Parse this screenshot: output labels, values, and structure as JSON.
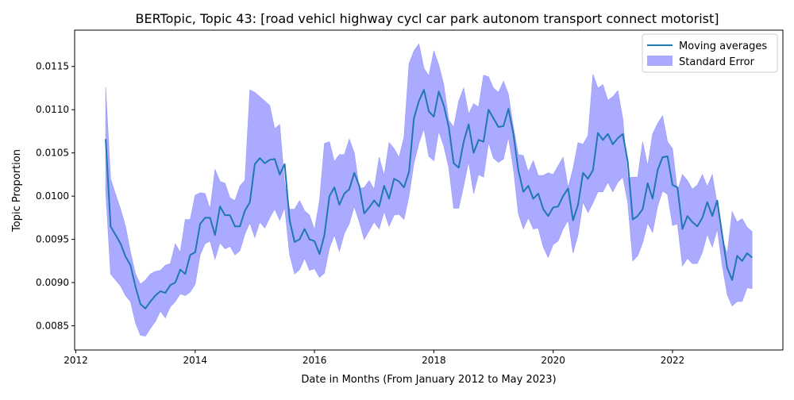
{
  "chart_data": {
    "type": "line",
    "title": "BERTopic, Topic 43: [road vehicl highway cycl car park autonom transport connect motorist]",
    "xlabel": "Date in Months (From January 2012 to May 2023)",
    "ylabel": "Topic Proportion",
    "xlim": [
      2011.98,
      2023.85
    ],
    "ylim": [
      0.00822,
      0.01192
    ],
    "xticks": [
      2012,
      2014,
      2016,
      2018,
      2020,
      2022
    ],
    "yticks": [
      0.0085,
      0.009,
      0.0095,
      0.01,
      0.0105,
      0.011,
      0.0115
    ],
    "ytick_labels": [
      "0.0085",
      "0.0090",
      "0.0095",
      "0.0100",
      "0.0105",
      "0.0110",
      "0.0115"
    ],
    "legend": {
      "position": "top-right"
    },
    "series": [
      {
        "name": "Moving averages",
        "color": "#1f77b4"
      },
      {
        "name": "Standard Error",
        "color": "#aaaaff"
      }
    ],
    "x": [
      2012.5,
      2012.5833,
      2012.6667,
      2012.75,
      2012.8333,
      2012.9167,
      2013.0,
      2013.0833,
      2013.1667,
      2013.25,
      2013.3333,
      2013.4167,
      2013.5,
      2013.5833,
      2013.6667,
      2013.75,
      2013.8333,
      2013.9167,
      2014.0,
      2014.0833,
      2014.1667,
      2014.25,
      2014.3333,
      2014.4167,
      2014.5,
      2014.5833,
      2014.6667,
      2014.75,
      2014.8333,
      2014.9167,
      2015.0,
      2015.0833,
      2015.1667,
      2015.25,
      2015.3333,
      2015.4167,
      2015.5,
      2015.5833,
      2015.6667,
      2015.75,
      2015.8333,
      2015.9167,
      2016.0,
      2016.0833,
      2016.1667,
      2016.25,
      2016.3333,
      2016.4167,
      2016.5,
      2016.5833,
      2016.6667,
      2016.75,
      2016.8333,
      2016.9167,
      2017.0,
      2017.0833,
      2017.1667,
      2017.25,
      2017.3333,
      2017.4167,
      2017.5,
      2017.5833,
      2017.6667,
      2017.75,
      2017.8333,
      2017.9167,
      2018.0,
      2018.0833,
      2018.1667,
      2018.25,
      2018.3333,
      2018.4167,
      2018.5,
      2018.5833,
      2018.6667,
      2018.75,
      2018.8333,
      2018.9167,
      2019.0,
      2019.0833,
      2019.1667,
      2019.25,
      2019.3333,
      2019.4167,
      2019.5,
      2019.5833,
      2019.6667,
      2019.75,
      2019.8333,
      2019.9167,
      2020.0,
      2020.0833,
      2020.1667,
      2020.25,
      2020.3333,
      2020.4167,
      2020.5,
      2020.5833,
      2020.6667,
      2020.75,
      2020.8333,
      2020.9167,
      2021.0,
      2021.0833,
      2021.1667,
      2021.25,
      2021.3333,
      2021.4167,
      2021.5,
      2021.5833,
      2021.6667,
      2021.75,
      2021.8333,
      2021.9167,
      2022.0,
      2022.0833,
      2022.1667,
      2022.25,
      2022.3333,
      2022.4167,
      2022.5,
      2022.5833,
      2022.6667,
      2022.75,
      2022.8333,
      2022.9167,
      2023.0,
      2023.0833,
      2023.1667,
      2023.25,
      2023.3333
    ],
    "moving_average": [
      0.01066,
      0.00965,
      0.00955,
      0.00945,
      0.0093,
      0.0092,
      0.00895,
      0.00875,
      0.0087,
      0.00878,
      0.00885,
      0.0089,
      0.00888,
      0.00897,
      0.009,
      0.00915,
      0.0091,
      0.00932,
      0.00935,
      0.00968,
      0.00975,
      0.00975,
      0.00955,
      0.00988,
      0.00978,
      0.00978,
      0.00965,
      0.00965,
      0.00983,
      0.00993,
      0.01037,
      0.01044,
      0.01038,
      0.01042,
      0.01043,
      0.01025,
      0.01037,
      0.00972,
      0.00947,
      0.0095,
      0.00962,
      0.0095,
      0.00948,
      0.00933,
      0.00955,
      0.01,
      0.0101,
      0.0099,
      0.01003,
      0.01008,
      0.01027,
      0.01012,
      0.0098,
      0.00987,
      0.00995,
      0.00988,
      0.01012,
      0.00997,
      0.0102,
      0.01017,
      0.0101,
      0.01028,
      0.0109,
      0.0111,
      0.01123,
      0.01098,
      0.01092,
      0.01121,
      0.01105,
      0.0108,
      0.01038,
      0.01033,
      0.01063,
      0.01083,
      0.0105,
      0.01065,
      0.01063,
      0.011,
      0.0109,
      0.0108,
      0.01081,
      0.01101,
      0.01072,
      0.0103,
      0.01005,
      0.01012,
      0.00997,
      0.01003,
      0.00985,
      0.00977,
      0.00987,
      0.00988,
      0.01,
      0.01009,
      0.00972,
      0.0099,
      0.01027,
      0.0102,
      0.0103,
      0.01073,
      0.01065,
      0.01072,
      0.0106,
      0.01067,
      0.01072,
      0.0104,
      0.00973,
      0.00977,
      0.00985,
      0.01015,
      0.00997,
      0.0103,
      0.01045,
      0.01046,
      0.01013,
      0.0101,
      0.00962,
      0.00977,
      0.0097,
      0.00965,
      0.00975,
      0.00993,
      0.00977,
      0.00995,
      0.00955,
      0.00917,
      0.00903,
      0.00931,
      0.00925,
      0.00934,
      0.00929,
      0.00926
    ],
    "upper_se": [
      0.01126,
      0.0102,
      0.01002,
      0.00985,
      0.00965,
      0.00935,
      0.0091,
      0.00898,
      0.00903,
      0.0091,
      0.00913,
      0.00914,
      0.0092,
      0.00922,
      0.00945,
      0.00935,
      0.00973,
      0.00973,
      0.01001,
      0.01004,
      0.01003,
      0.00985,
      0.01031,
      0.01017,
      0.01015,
      0.00998,
      0.00995,
      0.01012,
      0.01018,
      0.01123,
      0.0112,
      0.01115,
      0.0111,
      0.01105,
      0.01078,
      0.01083,
      0.01015,
      0.00985,
      0.00985,
      0.00995,
      0.00983,
      0.00978,
      0.00961,
      0.00995,
      0.01061,
      0.01063,
      0.0104,
      0.01048,
      0.01048,
      0.01066,
      0.0105,
      0.01009,
      0.0101,
      0.01018,
      0.01008,
      0.01045,
      0.01024,
      0.01062,
      0.01055,
      0.01045,
      0.01068,
      0.01153,
      0.01168,
      0.01176,
      0.01148,
      0.01139,
      0.01168,
      0.01152,
      0.01129,
      0.01088,
      0.0108,
      0.0111,
      0.01125,
      0.01095,
      0.01107,
      0.01103,
      0.0114,
      0.01138,
      0.01125,
      0.0112,
      0.01133,
      0.01118,
      0.0108,
      0.01048,
      0.01047,
      0.01028,
      0.01041,
      0.01024,
      0.01024,
      0.01027,
      0.01025,
      0.01035,
      0.01045,
      0.0101,
      0.01032,
      0.01062,
      0.0106,
      0.0107,
      0.01141,
      0.01125,
      0.01129,
      0.01111,
      0.01115,
      0.01122,
      0.0109,
      0.01021,
      0.01022,
      0.01022,
      0.01063,
      0.01035,
      0.01072,
      0.01084,
      0.01093,
      0.01063,
      0.01055,
      0.01006,
      0.01025,
      0.01018,
      0.01008,
      0.01013,
      0.01025,
      0.01011,
      0.01025,
      0.0099,
      0.00952,
      0.00933,
      0.00982,
      0.0097,
      0.00974,
      0.00964,
      0.00959
    ],
    "lower_se": [
      0.01006,
      0.0091,
      0.00903,
      0.00896,
      0.00885,
      0.00878,
      0.00853,
      0.00839,
      0.00838,
      0.00847,
      0.00855,
      0.00867,
      0.00859,
      0.00872,
      0.00878,
      0.00887,
      0.00885,
      0.00889,
      0.00898,
      0.00932,
      0.00945,
      0.00948,
      0.00927,
      0.00946,
      0.00939,
      0.00942,
      0.00932,
      0.00937,
      0.00956,
      0.00969,
      0.00952,
      0.0097,
      0.00963,
      0.00975,
      0.00985,
      0.00972,
      0.00987,
      0.00932,
      0.0091,
      0.00915,
      0.00928,
      0.00914,
      0.00916,
      0.00906,
      0.00911,
      0.0094,
      0.00955,
      0.00936,
      0.00957,
      0.00968,
      0.00988,
      0.0097,
      0.0095,
      0.0096,
      0.0097,
      0.00962,
      0.00982,
      0.00965,
      0.00978,
      0.00979,
      0.00973,
      0.01,
      0.01038,
      0.01061,
      0.01078,
      0.01046,
      0.01041,
      0.01075,
      0.01058,
      0.01033,
      0.00986,
      0.00986,
      0.01012,
      0.0104,
      0.01003,
      0.01025,
      0.01022,
      0.01062,
      0.01044,
      0.01039,
      0.01043,
      0.01068,
      0.01032,
      0.0098,
      0.00962,
      0.00975,
      0.00962,
      0.00963,
      0.00941,
      0.00929,
      0.00944,
      0.00948,
      0.00962,
      0.00972,
      0.00934,
      0.00955,
      0.00993,
      0.00981,
      0.00992,
      0.01005,
      0.01005,
      0.01016,
      0.01005,
      0.01016,
      0.01022,
      0.00993,
      0.00925,
      0.00931,
      0.00946,
      0.00969,
      0.00958,
      0.00988,
      0.01006,
      0.01002,
      0.00966,
      0.00968,
      0.00919,
      0.00928,
      0.00922,
      0.00922,
      0.00935,
      0.00956,
      0.00941,
      0.00962,
      0.0092,
      0.00886,
      0.00873,
      0.00878,
      0.00878,
      0.00894,
      0.00893,
      0.00893
    ]
  }
}
